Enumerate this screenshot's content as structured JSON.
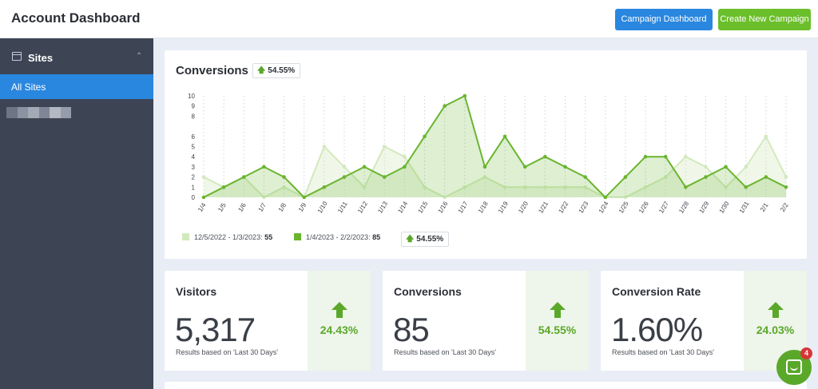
{
  "header": {
    "title": "Account Dashboard",
    "campaign_dashboard_label": "Campaign Dashboard",
    "create_campaign_label": "Create New Campaign"
  },
  "sidebar": {
    "section_label": "Sites",
    "chevron": "chevron-up-icon",
    "items": [
      {
        "label": "All Sites",
        "active": true
      },
      {
        "label": "",
        "redacted": true
      }
    ]
  },
  "conversions_chart": {
    "title": "Conversions",
    "badge_pct": "54.55%",
    "legend": {
      "previous_label": "12/5/2022 - 1/3/2023:",
      "previous_total": "55",
      "current_label": "1/4/2023 - 2/2/2023:",
      "current_total": "85",
      "change_pct": "54.55%"
    }
  },
  "chart_data": {
    "type": "area",
    "title": "Conversions",
    "xlabel": "",
    "ylabel": "",
    "ylim": [
      0,
      10
    ],
    "yticks": [
      "0",
      "1",
      "2",
      "3",
      "4",
      "5",
      "6",
      "8",
      "9",
      "10"
    ],
    "grid": true,
    "legend_position": "bottom-left",
    "categories": [
      "1/4",
      "1/5",
      "1/6",
      "1/7",
      "1/8",
      "1/9",
      "1/10",
      "1/11",
      "1/12",
      "1/13",
      "1/14",
      "1/15",
      "1/16",
      "1/17",
      "1/18",
      "1/19",
      "1/20",
      "1/21",
      "1/22",
      "1/23",
      "1/24",
      "1/25",
      "1/26",
      "1/27",
      "1/28",
      "1/29",
      "1/30",
      "1/31",
      "2/1",
      "2/2"
    ],
    "series": [
      {
        "name": "12/5/2022 - 1/3/2023",
        "color": "#d3e9bd",
        "values": [
          2,
          1,
          2,
          0,
          1,
          0,
          5,
          3,
          1,
          5,
          4,
          1,
          0,
          1,
          2,
          1,
          1,
          1,
          1,
          1,
          0,
          0,
          1,
          2,
          4,
          3,
          1,
          3,
          6,
          2
        ]
      },
      {
        "name": "1/4/2023 - 2/2/2023",
        "color": "#6ab530",
        "values": [
          0,
          1,
          2,
          3,
          2,
          0,
          1,
          2,
          3,
          2,
          3,
          6,
          9,
          10,
          3,
          6,
          3,
          4,
          3,
          2,
          0,
          2,
          4,
          4,
          1,
          2,
          3,
          1,
          2,
          1
        ]
      }
    ]
  },
  "stats": [
    {
      "title": "Visitors",
      "value": "5,317",
      "note": "Results based on 'Last 30 Days'",
      "change": "24.43%",
      "direction": "up"
    },
    {
      "title": "Conversions",
      "value": "85",
      "note": "Results based on 'Last 30 Days'",
      "change": "54.55%",
      "direction": "up"
    },
    {
      "title": "Conversion Rate",
      "value": "1.60%",
      "note": "Results based on 'Last 30 Days'",
      "change": "24.03%",
      "direction": "up"
    }
  ],
  "chat": {
    "icon": "chat-bubble-icon",
    "badge_count": "4"
  },
  "colors": {
    "accent_blue": "#2a87e0",
    "accent_green": "#6bbf2b",
    "sidebar_bg": "#3d4454",
    "positive": "#5aa82a"
  }
}
